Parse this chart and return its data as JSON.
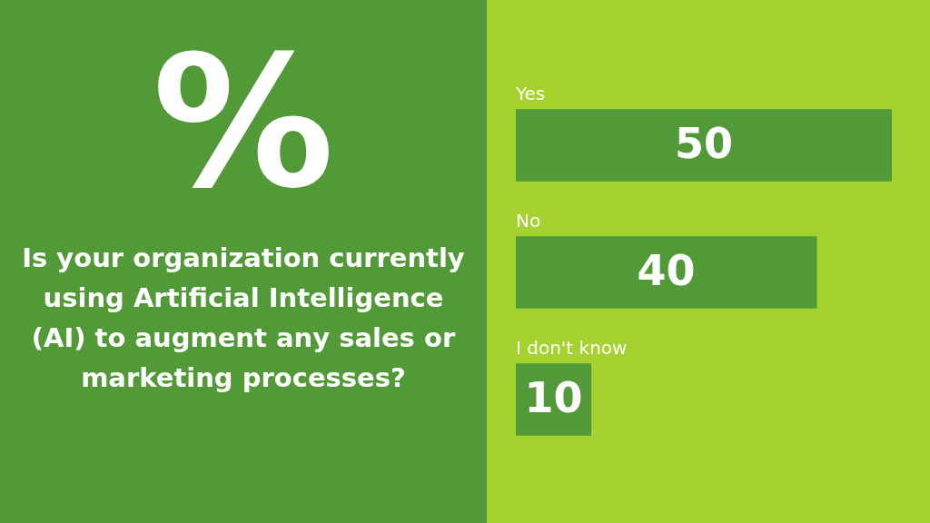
{
  "chart_data": {
    "type": "bar",
    "orientation": "horizontal",
    "title": "Is your organization currently using Artificial Intelligence (AI) to augment any sales or marketing processes?",
    "annotations": [
      "%"
    ],
    "categories": [
      "Yes",
      "No",
      "I don't know"
    ],
    "values": [
      50,
      40,
      10
    ],
    "color": "#529a37",
    "data_labels": true
  }
}
